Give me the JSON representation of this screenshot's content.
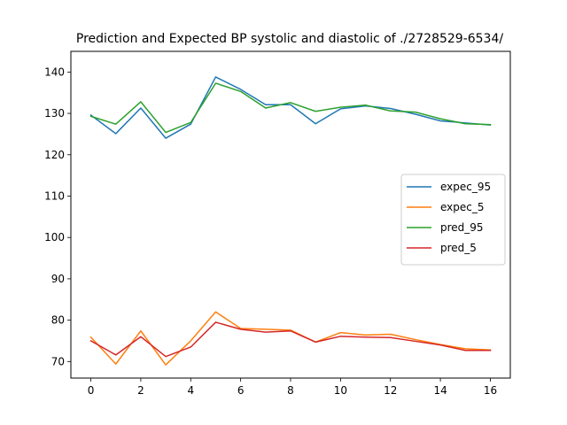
{
  "chart_data": {
    "type": "line",
    "title": "Prediction and Expected BP systolic and diastolic of ./2728529-6534/",
    "xlabel": "",
    "ylabel": "",
    "x": [
      0,
      1,
      2,
      3,
      4,
      5,
      6,
      7,
      8,
      9,
      10,
      11,
      12,
      13,
      14,
      15,
      16
    ],
    "xlim": [
      -0.8,
      16.8
    ],
    "ylim": [
      66,
      145
    ],
    "xticks": [
      0,
      2,
      4,
      6,
      8,
      10,
      12,
      14,
      16
    ],
    "yticks": [
      70,
      80,
      90,
      100,
      110,
      120,
      130,
      140
    ],
    "grid": false,
    "legend_position": "center-right",
    "series": [
      {
        "name": "expec_95",
        "color": "#1f77b4",
        "values": [
          129.6,
          125.1,
          131.3,
          124.0,
          127.4,
          138.8,
          135.8,
          132.1,
          132.1,
          127.5,
          131.1,
          131.8,
          131.2,
          129.8,
          128.2,
          127.7,
          127.2
        ]
      },
      {
        "name": "expec_5",
        "color": "#ff7f0e",
        "values": [
          75.9,
          69.4,
          77.4,
          69.2,
          75.0,
          82.0,
          78.0,
          77.8,
          77.6,
          74.7,
          77.0,
          76.4,
          76.6,
          75.3,
          74.1,
          73.1,
          72.8
        ]
      },
      {
        "name": "pred_95",
        "color": "#2ca02c",
        "values": [
          129.3,
          127.4,
          132.8,
          125.4,
          127.8,
          137.3,
          135.3,
          131.3,
          132.6,
          130.5,
          131.5,
          132.0,
          130.6,
          130.3,
          128.7,
          127.5,
          127.3
        ]
      },
      {
        "name": "pred_5",
        "color": "#d62728",
        "values": [
          75.0,
          71.6,
          76.0,
          71.2,
          73.5,
          79.5,
          77.8,
          77.1,
          77.4,
          74.7,
          76.1,
          75.9,
          75.8,
          74.9,
          74.0,
          72.7,
          72.7
        ]
      }
    ]
  }
}
